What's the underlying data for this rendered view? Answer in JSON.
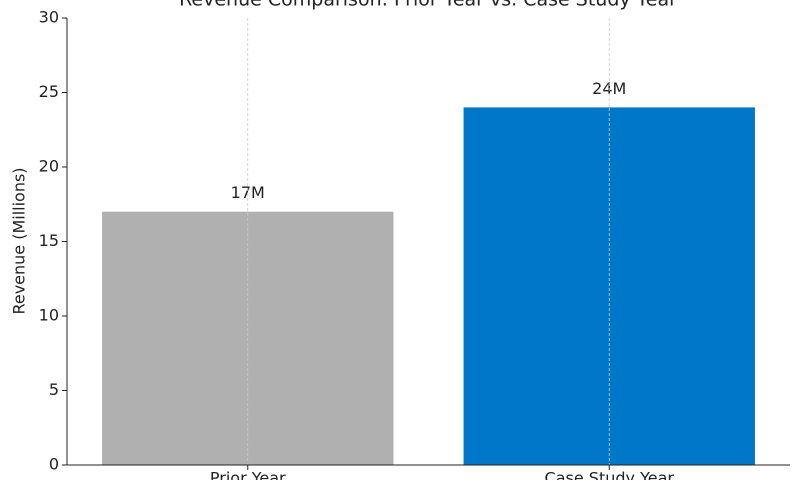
{
  "chart_data": {
    "type": "bar",
    "title": "Revenue Comparison: Prior Year vs. Case Study Year",
    "y_label": "Revenue (Millions)",
    "categories": [
      "Prior Year",
      "Case Study Year"
    ],
    "values": [
      17,
      24
    ],
    "value_labels": [
      "17M",
      "24M"
    ],
    "colors": [
      "#b0b0b0",
      "#0077c8"
    ],
    "ylim": [
      0,
      30
    ],
    "yticks": [
      0,
      5,
      10,
      15,
      20,
      25,
      30
    ],
    "grid": "x"
  }
}
